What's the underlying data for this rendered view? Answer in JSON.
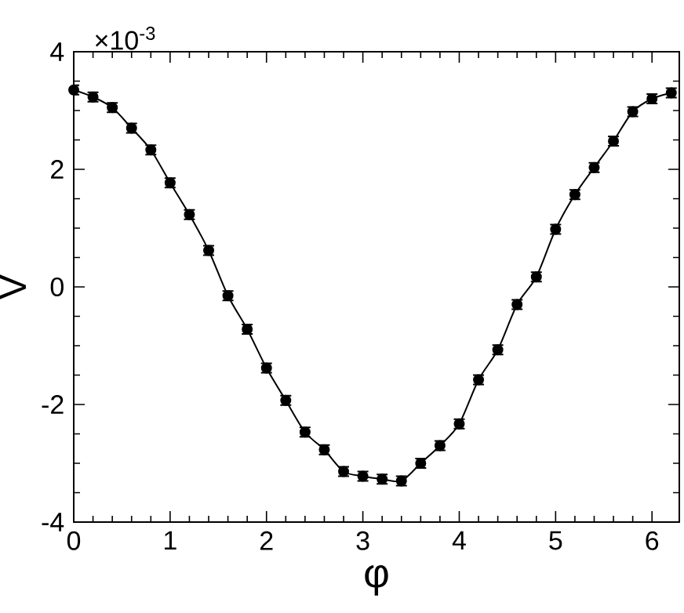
{
  "chart_data": {
    "type": "line",
    "xlabel": "φ",
    "ylabel": "V",
    "annotations": [
      "×10$^{-3}$"
    ],
    "x": [
      0,
      0.2,
      0.4,
      0.6,
      0.8,
      1.0,
      1.2,
      1.4,
      1.6,
      1.8,
      2.0,
      2.2,
      2.4,
      2.6,
      2.8,
      3.0,
      3.2,
      3.4,
      3.6,
      3.8,
      4.0,
      4.2,
      4.4,
      4.6,
      4.8,
      5.0,
      5.2,
      5.4,
      5.6,
      5.8,
      6.0,
      6.2
    ],
    "series": [
      {
        "color": "#000000",
        "values": [
          3.35,
          3.23,
          3.05,
          2.7,
          2.33,
          1.77,
          1.23,
          0.62,
          -0.15,
          -0.72,
          -1.38,
          -1.93,
          -2.47,
          -2.77,
          -3.14,
          -3.22,
          -3.27,
          -3.3,
          -3.0,
          -2.7,
          -2.33,
          -1.58,
          -1.07,
          -0.3,
          0.17,
          0.98,
          1.57,
          2.03,
          2.48,
          2.98,
          3.2,
          3.3
        ],
        "errors": [
          0.08,
          0.08,
          0.08,
          0.08,
          0.08,
          0.08,
          0.08,
          0.08,
          0.08,
          0.08,
          0.08,
          0.08,
          0.08,
          0.08,
          0.08,
          0.08,
          0.08,
          0.08,
          0.08,
          0.08,
          0.08,
          0.08,
          0.08,
          0.08,
          0.08,
          0.08,
          0.08,
          0.08,
          0.08,
          0.08,
          0.08,
          0.08
        ]
      }
    ],
    "xlim": [
      0,
      6.2832
    ],
    "ylim": [
      -4,
      4
    ],
    "xticks": [
      0,
      1,
      2,
      3,
      4,
      5,
      6
    ],
    "yticks": [
      -4,
      -2,
      0,
      2,
      4
    ],
    "marker": "circle",
    "line_style": "solid"
  }
}
